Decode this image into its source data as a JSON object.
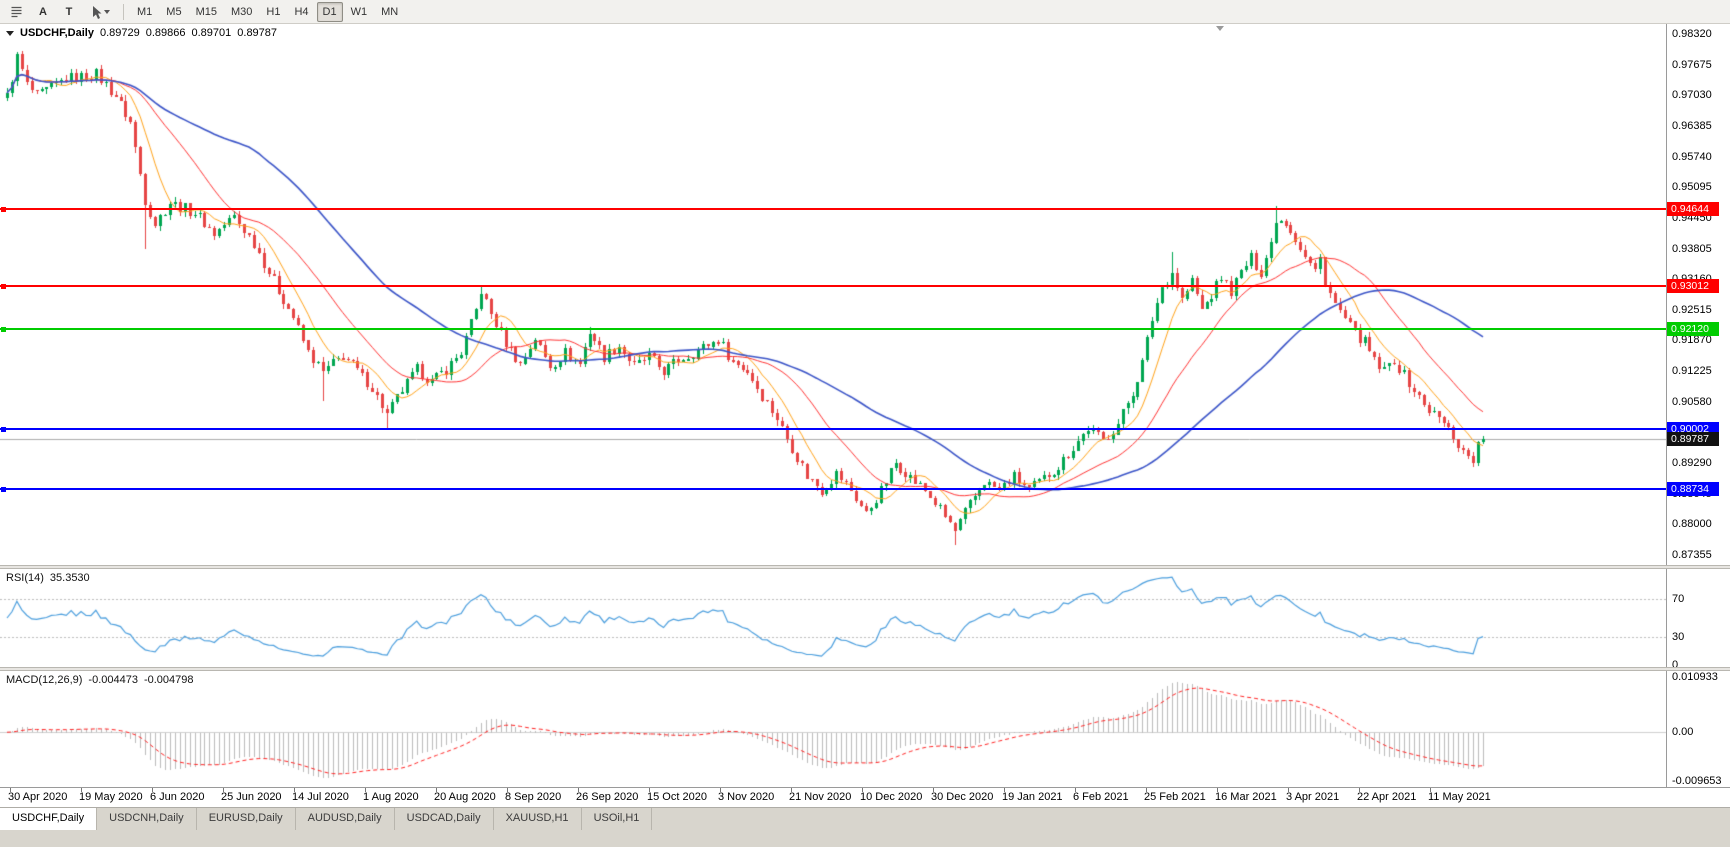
{
  "toolbar": {
    "tool_buttons": [
      {
        "name": "charts-list",
        "glyph": "≡"
      },
      {
        "name": "annotation-a",
        "glyph": "A"
      },
      {
        "name": "text-tool",
        "glyph": "T"
      },
      {
        "name": "cursor",
        "glyph": "➤"
      }
    ],
    "timeframes": [
      {
        "label": "M1",
        "active": false
      },
      {
        "label": "M5",
        "active": false
      },
      {
        "label": "M15",
        "active": false
      },
      {
        "label": "M30",
        "active": false
      },
      {
        "label": "H1",
        "active": false
      },
      {
        "label": "H4",
        "active": false
      },
      {
        "label": "D1",
        "active": true
      },
      {
        "label": "W1",
        "active": false
      },
      {
        "label": "MN",
        "active": false
      }
    ]
  },
  "colors": {
    "up": "#00A651",
    "down": "#E64545",
    "ma_fast": "#FFA319",
    "ma_mid": "#FF3333",
    "ma_slow": "#3C55C8",
    "rsi": "#4C9FDE",
    "macd_hist": "#BBBBBB",
    "macd_signal": "#FF2222",
    "current_line": "#ABABAB",
    "current_box": "#111111"
  },
  "chart_data": {
    "type": "candlestick",
    "title": "USDCHF,Daily",
    "symbol": "USDCHF",
    "timeframe": "Daily",
    "ohlc": {
      "open": "0.89729",
      "high": "0.89866",
      "low": "0.89701",
      "close": "0.89787"
    },
    "price_ticks": [
      "0.98320",
      "0.97675",
      "0.97030",
      "0.96385",
      "0.95740",
      "0.95095",
      "0.94450",
      "0.93805",
      "0.93160",
      "0.92515",
      "0.91870",
      "0.91225",
      "0.90580",
      "0.89935",
      "0.89290",
      "0.88645",
      "0.88000",
      "0.87355"
    ],
    "y_range": [
      0.87355,
      0.9832
    ],
    "dates": [
      "30 Apr 2020",
      "19 May 2020",
      "6 Jun 2020",
      "25 Jun 2020",
      "14 Jul 2020",
      "1 Aug 2020",
      "20 Aug 2020",
      "8 Sep 2020",
      "26 Sep 2020",
      "15 Oct 2020",
      "3 Nov 2020",
      "21 Nov 2020",
      "10 Dec 2020",
      "30 Dec 2020",
      "19 Jan 2021",
      "6 Feb 2021",
      "25 Feb 2021",
      "16 Mar 2021",
      "3 Apr 2021",
      "22 Apr 2021",
      "11 May 2021"
    ],
    "levels": [
      {
        "label": "0.94644",
        "price": 0.94644,
        "color": "#FF0000"
      },
      {
        "label": "0.93012",
        "price": 0.93012,
        "color": "#FF0000"
      },
      {
        "label": "0.92120",
        "price": 0.9212,
        "color": "#00CC00"
      },
      {
        "label": "0.90002",
        "price": 0.90002,
        "color": "#0000FF"
      },
      {
        "label": "0.88734",
        "price": 0.88734,
        "color": "#0000FF"
      }
    ],
    "current_price": {
      "label": "0.89787",
      "price": 0.89787
    },
    "candle_count": 300,
    "close_path": [
      [
        0,
        0.97
      ],
      [
        2,
        0.9782
      ],
      [
        4,
        0.9726
      ],
      [
        6,
        0.97
      ],
      [
        12,
        0.9738
      ],
      [
        18,
        0.9748
      ],
      [
        22,
        0.9702
      ],
      [
        25,
        0.9646
      ],
      [
        28,
        0.9482
      ],
      [
        30,
        0.9432
      ],
      [
        33,
        0.9478
      ],
      [
        38,
        0.9456
      ],
      [
        42,
        0.9412
      ],
      [
        46,
        0.9448
      ],
      [
        50,
        0.9392
      ],
      [
        54,
        0.9312
      ],
      [
        58,
        0.9236
      ],
      [
        61,
        0.9162
      ],
      [
        64,
        0.912
      ],
      [
        68,
        0.9156
      ],
      [
        71,
        0.9122
      ],
      [
        74,
        0.9088
      ],
      [
        77,
        0.903
      ],
      [
        80,
        0.9082
      ],
      [
        83,
        0.9126
      ],
      [
        86,
        0.91
      ],
      [
        89,
        0.9126
      ],
      [
        92,
        0.9162
      ],
      [
        95,
        0.925
      ],
      [
        96,
        0.9292
      ],
      [
        98,
        0.9242
      ],
      [
        101,
        0.9182
      ],
      [
        104,
        0.9136
      ],
      [
        107,
        0.9192
      ],
      [
        110,
        0.9132
      ],
      [
        113,
        0.9162
      ],
      [
        116,
        0.9138
      ],
      [
        118,
        0.9206
      ],
      [
        121,
        0.9152
      ],
      [
        124,
        0.9176
      ],
      [
        127,
        0.9132
      ],
      [
        130,
        0.9152
      ],
      [
        133,
        0.9122
      ],
      [
        136,
        0.9146
      ],
      [
        140,
        0.9166
      ],
      [
        144,
        0.919
      ],
      [
        147,
        0.9142
      ],
      [
        150,
        0.9122
      ],
      [
        153,
        0.9072
      ],
      [
        156,
        0.9022
      ],
      [
        159,
        0.8962
      ],
      [
        162,
        0.8902
      ],
      [
        165,
        0.8872
      ],
      [
        168,
        0.8906
      ],
      [
        171,
        0.8872
      ],
      [
        174,
        0.8822
      ],
      [
        177,
        0.887
      ],
      [
        180,
        0.893
      ],
      [
        183,
        0.89
      ],
      [
        186,
        0.887
      ],
      [
        189,
        0.8832
      ],
      [
        192,
        0.8786
      ],
      [
        195,
        0.8842
      ],
      [
        198,
        0.889
      ],
      [
        201,
        0.8872
      ],
      [
        204,
        0.89
      ],
      [
        207,
        0.8872
      ],
      [
        210,
        0.8896
      ],
      [
        213,
        0.8922
      ],
      [
        216,
        0.8962
      ],
      [
        219,
        0.9002
      ],
      [
        222,
        0.8976
      ],
      [
        225,
        0.9012
      ],
      [
        228,
        0.9078
      ],
      [
        230,
        0.914
      ],
      [
        232,
        0.9232
      ],
      [
        234,
        0.93
      ],
      [
        236,
        0.933
      ],
      [
        238,
        0.9272
      ],
      [
        240,
        0.9312
      ],
      [
        242,
        0.9252
      ],
      [
        244,
        0.9282
      ],
      [
        246,
        0.932
      ],
      [
        248,
        0.9292
      ],
      [
        250,
        0.933
      ],
      [
        252,
        0.936
      ],
      [
        254,
        0.9332
      ],
      [
        256,
        0.9392
      ],
      [
        257,
        0.9445
      ],
      [
        259,
        0.9438
      ],
      [
        261,
        0.9402
      ],
      [
        263,
        0.9362
      ],
      [
        265,
        0.9332
      ],
      [
        266,
        0.936
      ],
      [
        267,
        0.9312
      ],
      [
        269,
        0.9262
      ],
      [
        271,
        0.9232
      ],
      [
        273,
        0.9202
      ],
      [
        275,
        0.9182
      ],
      [
        277,
        0.9142
      ],
      [
        279,
        0.9122
      ],
      [
        281,
        0.9146
      ],
      [
        283,
        0.9112
      ],
      [
        285,
        0.9082
      ],
      [
        287,
        0.9052
      ],
      [
        289,
        0.9032
      ],
      [
        291,
        0.9012
      ],
      [
        293,
        0.8986
      ],
      [
        295,
        0.8952
      ],
      [
        297,
        0.8938
      ],
      [
        299,
        0.89787
      ]
    ],
    "spikes": [
      {
        "i": 28,
        "low": 0.938
      },
      {
        "i": 64,
        "low": 0.9058
      },
      {
        "i": 77,
        "low": 0.8999
      },
      {
        "i": 96,
        "high": 0.9301
      },
      {
        "i": 118,
        "high": 0.9216
      },
      {
        "i": 192,
        "low": 0.8757
      },
      {
        "i": 236,
        "high": 0.9374
      },
      {
        "i": 257,
        "high": 0.9469
      },
      {
        "i": 297,
        "low": 0.8929
      }
    ],
    "last_candle": {
      "o": 0.89729,
      "h": 0.89866,
      "l": 0.89701,
      "c": 0.89787
    },
    "moving_averages": [
      {
        "period": 8,
        "color_key": "ma_fast"
      },
      {
        "period": 21,
        "color_key": "ma_mid"
      },
      {
        "period": 50,
        "color_key": "ma_slow"
      }
    ],
    "indicators": {
      "rsi": {
        "period": 14,
        "label": "RSI(14)",
        "value": "35.3530",
        "levels": [
          70,
          30
        ],
        "scale_labels": [
          "70",
          "30",
          "0"
        ]
      },
      "macd": {
        "params": [
          12,
          26,
          9
        ],
        "label": "MACD(12,26,9)",
        "value": "-0.004473",
        "signal": "-0.004798",
        "scale_labels": [
          "0.010933",
          "0.00",
          "-0.009653"
        ]
      }
    }
  },
  "tabs": [
    {
      "label": "USDCHF,Daily",
      "active": true
    },
    {
      "label": "USDCNH,Daily",
      "active": false
    },
    {
      "label": "EURUSD,Daily",
      "active": false
    },
    {
      "label": "AUDUSD,Daily",
      "active": false
    },
    {
      "label": "USDCAD,Daily",
      "active": false
    },
    {
      "label": "XAUUSD,H1",
      "active": false
    },
    {
      "label": "USOil,H1",
      "active": false
    }
  ]
}
